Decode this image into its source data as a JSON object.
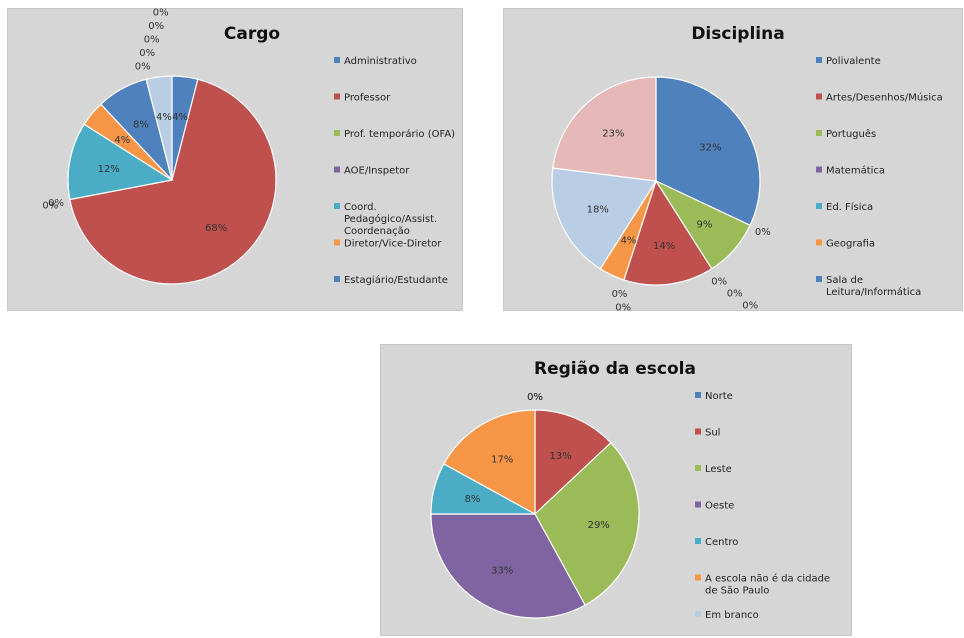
{
  "chart_data": [
    {
      "type": "pie",
      "title": "Cargo",
      "legend_position": "right",
      "start_angle_deg": 0,
      "slices": [
        {
          "label": "Administrativo",
          "value": 4,
          "color": "#4f81bd"
        },
        {
          "label": "Professor",
          "value": 68,
          "color": "#c0504d"
        },
        {
          "label": "Prof. temporário (OFA)",
          "value": 0,
          "color": "#9bbb59"
        },
        {
          "label": "AOE/Inspetor",
          "value": 0,
          "color": "#8064a2"
        },
        {
          "label": "Coord. Pedagógico/Assist. Coordenação",
          "value": 12,
          "color": "#4bacc6"
        },
        {
          "label": "Diretor/Vice-Diretor",
          "value": 4,
          "color": "#f79646"
        },
        {
          "label": "Estagiário/Estudante",
          "value": 8,
          "color": "#4f81bd"
        },
        {
          "label": "",
          "value": 0,
          "color": "#c0504d"
        },
        {
          "label": "",
          "value": 0,
          "color": "#9bbb59"
        },
        {
          "label": "",
          "value": 0,
          "color": "#8064a2"
        },
        {
          "label": "",
          "value": 0,
          "color": "#4bacc6"
        },
        {
          "label": "",
          "value": 0,
          "color": "#f79646"
        },
        {
          "label": "",
          "value": 4,
          "color": "#b9cde5"
        }
      ],
      "legend": [
        "Administrativo",
        "Professor",
        "Prof. temporário (OFA)",
        "AOE/Inspetor",
        "Coord. Pedagógico/Assist. Coordenação",
        "Diretor/Vice-Diretor",
        "Estagiário/Estudante"
      ]
    },
    {
      "type": "pie",
      "title": "Disciplina",
      "legend_position": "right",
      "start_angle_deg": 0,
      "slices": [
        {
          "label": "Polivalente",
          "value": 32,
          "color": "#4f81bd"
        },
        {
          "label": "",
          "value": 0,
          "color": "#4f81bd"
        },
        {
          "label": "Português",
          "value": 9,
          "color": "#9bbb59"
        },
        {
          "label": "",
          "value": 0,
          "color": "#8064a2"
        },
        {
          "label": "",
          "value": 0,
          "color": "#4bacc6"
        },
        {
          "label": "",
          "value": 0,
          "color": "#f79646"
        },
        {
          "label": "",
          "value": 0,
          "color": "#4f81bd"
        },
        {
          "label": "Artes/Desenhos/Música",
          "value": 14,
          "color": "#c0504d"
        },
        {
          "label": "",
          "value": 0,
          "color": "#9bbb59"
        },
        {
          "label": "",
          "value": 0,
          "color": "#8064a2"
        },
        {
          "label": "",
          "value": 0,
          "color": "#4bacc6"
        },
        {
          "label": "Geografia",
          "value": 4,
          "color": "#f79646"
        },
        {
          "label": "",
          "value": 18,
          "color": "#b9cde5"
        },
        {
          "label": "",
          "value": 23,
          "color": "#e6b9b8"
        }
      ],
      "legend": [
        "Polivalente",
        "Artes/Desenhos/Música",
        "Português",
        "Matemática",
        "Ed. Física",
        "Geografia",
        "Sala de Leitura/Informática"
      ]
    },
    {
      "type": "pie",
      "title": "Região da escola",
      "legend_position": "right",
      "start_angle_deg": 0,
      "slices": [
        {
          "label": "Norte",
          "value": 0,
          "color": "#4f81bd"
        },
        {
          "label": "Sul",
          "value": 13,
          "color": "#c0504d"
        },
        {
          "label": "Leste",
          "value": 29,
          "color": "#9bbb59"
        },
        {
          "label": "Oeste",
          "value": 33,
          "color": "#8064a2"
        },
        {
          "label": "Centro",
          "value": 8,
          "color": "#4bacc6"
        },
        {
          "label": "A escola não é da cidade de São Paulo",
          "value": 17,
          "color": "#f79646"
        },
        {
          "label": "Em branco",
          "value": 0,
          "color": "#b9cde5"
        }
      ],
      "legend": [
        "Norte",
        "Sul",
        "Leste",
        "Oeste",
        "Centro",
        "A escola não é da cidade de São Paulo",
        "Em branco"
      ]
    }
  ]
}
